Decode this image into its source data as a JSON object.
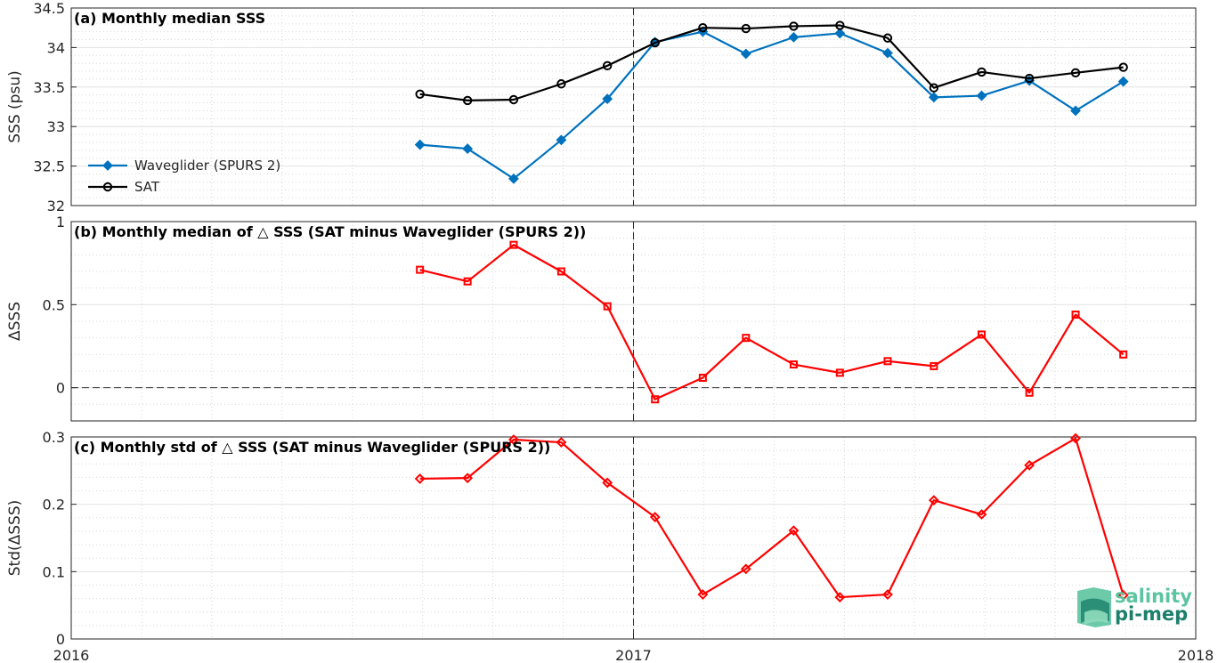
{
  "colors": {
    "waveglider": "#0072BD",
    "sat": "#000000",
    "delta": "#FF0000",
    "logo_dark": "#1b7f6b",
    "logo_light": "#5cc4a0"
  },
  "logo": {
    "line1": "salinity",
    "line2": "pi-mep"
  },
  "x_axis": {
    "ticks": [
      2016,
      2017,
      2018
    ],
    "tick_labels": [
      "2016",
      "2017",
      "2018"
    ],
    "range": [
      2016.0,
      2018.0
    ],
    "reference_line": 2017.0
  },
  "chart_data": [
    {
      "type": "line",
      "title": "(a) Monthly median SSS",
      "ylabel": "SSS (psu)",
      "ylim": [
        32,
        34.5
      ],
      "yticks": [
        32,
        32.5,
        33,
        33.5,
        34,
        34.5
      ],
      "ytick_labels": [
        "32",
        "32.5",
        "33",
        "33.5",
        "34",
        "34.5"
      ],
      "grid": true,
      "legend": {
        "placement": "left",
        "entries": [
          "Waveglider (SPURS 2)",
          "SAT"
        ]
      },
      "x": [
        "2016-08-15",
        "2016-09-15",
        "2016-10-15",
        "2016-11-15",
        "2016-12-15",
        "2017-01-15",
        "2017-02-15",
        "2017-03-15",
        "2017-04-15",
        "2017-05-15",
        "2017-06-15",
        "2017-07-15",
        "2017-08-15",
        "2017-09-15",
        "2017-10-15",
        "2017-11-15"
      ],
      "series": [
        {
          "name": "Waveglider (SPURS 2)",
          "marker": "diamond",
          "color": "#0072BD",
          "values": [
            32.77,
            32.72,
            32.34,
            32.83,
            33.35,
            34.07,
            34.2,
            33.92,
            34.13,
            34.18,
            33.93,
            33.37,
            33.39,
            33.58,
            33.2,
            33.57
          ]
        },
        {
          "name": "SAT",
          "marker": "circle",
          "color": "#000000",
          "values": [
            33.41,
            33.33,
            33.34,
            33.54,
            33.77,
            34.06,
            34.25,
            34.24,
            34.27,
            34.28,
            34.12,
            33.49,
            33.69,
            33.61,
            33.68,
            33.75
          ]
        }
      ]
    },
    {
      "type": "line",
      "title": "(b) Monthly median of △ SSS (SAT minus Waveglider (SPURS 2))",
      "ylabel": "ΔSSS",
      "ylim": [
        -0.2,
        1
      ],
      "yticks": [
        0,
        0.5,
        1
      ],
      "ytick_labels": [
        "0",
        "0.5",
        "1"
      ],
      "grid": true,
      "zero_line": true,
      "x": [
        "2016-08-15",
        "2016-09-15",
        "2016-10-15",
        "2016-11-15",
        "2016-12-15",
        "2017-01-15",
        "2017-02-15",
        "2017-03-15",
        "2017-04-15",
        "2017-05-15",
        "2017-06-15",
        "2017-07-15",
        "2017-08-15",
        "2017-09-15",
        "2017-10-15",
        "2017-11-15"
      ],
      "series": [
        {
          "marker": "square",
          "color": "#FF0000",
          "values": [
            0.71,
            0.64,
            0.86,
            0.7,
            0.49,
            -0.07,
            0.06,
            0.3,
            0.14,
            0.09,
            0.16,
            0.13,
            0.32,
            -0.03,
            0.44,
            0.2
          ]
        }
      ]
    },
    {
      "type": "line",
      "title": "(c) Monthly std of △ SSS (SAT minus Waveglider (SPURS 2))",
      "ylabel": "Std(ΔSSS)",
      "ylim": [
        0,
        0.3
      ],
      "yticks": [
        0,
        0.1,
        0.2,
        0.3
      ],
      "ytick_labels": [
        "0",
        "0.1",
        "0.2",
        "0.3"
      ],
      "grid": true,
      "x": [
        "2016-08-15",
        "2016-09-15",
        "2016-10-15",
        "2016-11-15",
        "2016-12-15",
        "2017-01-15",
        "2017-02-15",
        "2017-03-15",
        "2017-04-15",
        "2017-05-15",
        "2017-06-15",
        "2017-07-15",
        "2017-08-15",
        "2017-09-15",
        "2017-10-15",
        "2017-11-15"
      ],
      "series": [
        {
          "marker": "diamond",
          "color": "#FF0000",
          "values": [
            0.238,
            0.239,
            0.296,
            0.292,
            0.232,
            0.181,
            0.066,
            0.104,
            0.161,
            0.062,
            0.066,
            0.206,
            0.185,
            0.258,
            0.298,
            0.065
          ]
        }
      ]
    }
  ]
}
